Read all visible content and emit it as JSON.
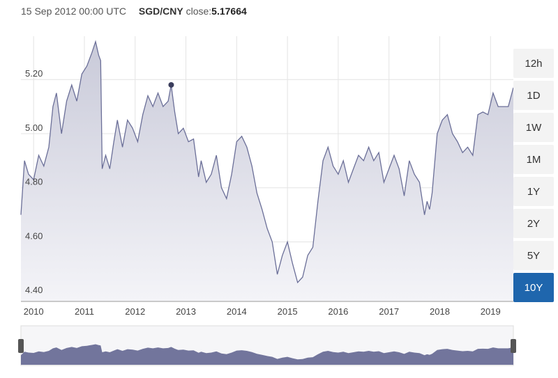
{
  "header": {
    "datetime": "15 Sep 2012 00:00 UTC",
    "pair": "SGD/CNY",
    "close_label": "close:",
    "close_value": "5.17664"
  },
  "range_buttons": [
    {
      "label": "12h",
      "active": false
    },
    {
      "label": "1D",
      "active": false
    },
    {
      "label": "1W",
      "active": false
    },
    {
      "label": "1M",
      "active": false
    },
    {
      "label": "1Y",
      "active": false
    },
    {
      "label": "2Y",
      "active": false
    },
    {
      "label": "5Y",
      "active": false
    },
    {
      "label": "10Y",
      "active": true
    }
  ],
  "colors": {
    "line": "#6b6f98",
    "fill_top": "#c9cad9",
    "fill_bottom": "#f4f4f8",
    "grid": "#e4e4e4",
    "active_button": "#1f66ad",
    "navigator_fill": "#5a5e8c"
  },
  "chart_data": {
    "type": "area",
    "y_ticks": [
      4.4,
      4.6,
      4.8,
      5.0,
      5.2
    ],
    "ylim": [
      4.38,
      5.36
    ],
    "xlim": [
      2009.75,
      2019.45
    ],
    "x_ticks": [
      2010,
      2011,
      2012,
      2013,
      2014,
      2015,
      2016,
      2017,
      2018,
      2019
    ],
    "x_tick_labels": [
      "2010",
      "2011",
      "2012",
      "2013",
      "2014",
      "2015",
      "2016",
      "2017",
      "2018",
      "2019"
    ],
    "highlight_point": {
      "x": 2012.71,
      "y": 5.18
    },
    "series": [
      {
        "x": [
          2009.75,
          2009.82,
          2009.9,
          2010.0,
          2010.1,
          2010.2,
          2010.3,
          2010.38,
          2010.45,
          2010.55,
          2010.65,
          2010.75,
          2010.85,
          2010.95,
          2011.05,
          2011.15,
          2011.22,
          2011.28,
          2011.32,
          2011.35,
          2011.42,
          2011.5,
          2011.58,
          2011.65,
          2011.7,
          2011.75,
          2011.85,
          2011.95,
          2012.05,
          2012.15,
          2012.25,
          2012.35,
          2012.45,
          2012.55,
          2012.65,
          2012.71,
          2012.78,
          2012.85,
          2012.95,
          2013.05,
          2013.15,
          2013.25,
          2013.3,
          2013.4,
          2013.5,
          2013.6,
          2013.7,
          2013.8,
          2013.9,
          2014.0,
          2014.1,
          2014.2,
          2014.3,
          2014.4,
          2014.5,
          2014.6,
          2014.7,
          2014.8,
          2014.9,
          2015.0,
          2015.1,
          2015.2,
          2015.3,
          2015.4,
          2015.5,
          2015.6,
          2015.7,
          2015.8,
          2015.9,
          2016.0,
          2016.1,
          2016.2,
          2016.3,
          2016.4,
          2016.5,
          2016.6,
          2016.7,
          2016.8,
          2016.9,
          2017.0,
          2017.1,
          2017.2,
          2017.3,
          2017.4,
          2017.5,
          2017.6,
          2017.7,
          2017.75,
          2017.8,
          2017.85,
          2017.95,
          2018.05,
          2018.15,
          2018.25,
          2018.35,
          2018.45,
          2018.55,
          2018.65,
          2018.75,
          2018.85,
          2018.95,
          2019.05,
          2019.15,
          2019.25,
          2019.35,
          2019.45
        ],
        "values": [
          4.7,
          4.9,
          4.85,
          4.83,
          4.92,
          4.88,
          4.95,
          5.1,
          5.15,
          5.0,
          5.12,
          5.18,
          5.12,
          5.22,
          5.25,
          5.3,
          5.34,
          5.29,
          5.27,
          4.87,
          4.92,
          4.87,
          4.97,
          5.05,
          5.0,
          4.95,
          5.05,
          5.02,
          4.97,
          5.07,
          5.14,
          5.1,
          5.15,
          5.1,
          5.12,
          5.18,
          5.08,
          5.0,
          5.02,
          4.97,
          4.98,
          4.84,
          4.9,
          4.82,
          4.85,
          4.92,
          4.8,
          4.76,
          4.85,
          4.97,
          4.99,
          4.95,
          4.88,
          4.78,
          4.72,
          4.65,
          4.6,
          4.48,
          4.55,
          4.6,
          4.52,
          4.45,
          4.47,
          4.55,
          4.58,
          4.75,
          4.9,
          4.95,
          4.88,
          4.85,
          4.9,
          4.82,
          4.87,
          4.92,
          4.9,
          4.95,
          4.9,
          4.93,
          4.82,
          4.87,
          4.92,
          4.87,
          4.77,
          4.9,
          4.85,
          4.82,
          4.7,
          4.75,
          4.72,
          4.78,
          5.0,
          5.05,
          5.07,
          5.0,
          4.97,
          4.93,
          4.95,
          4.92,
          5.07,
          5.08,
          5.07,
          5.15,
          5.1,
          5.1,
          5.1,
          5.17
        ]
      }
    ]
  }
}
